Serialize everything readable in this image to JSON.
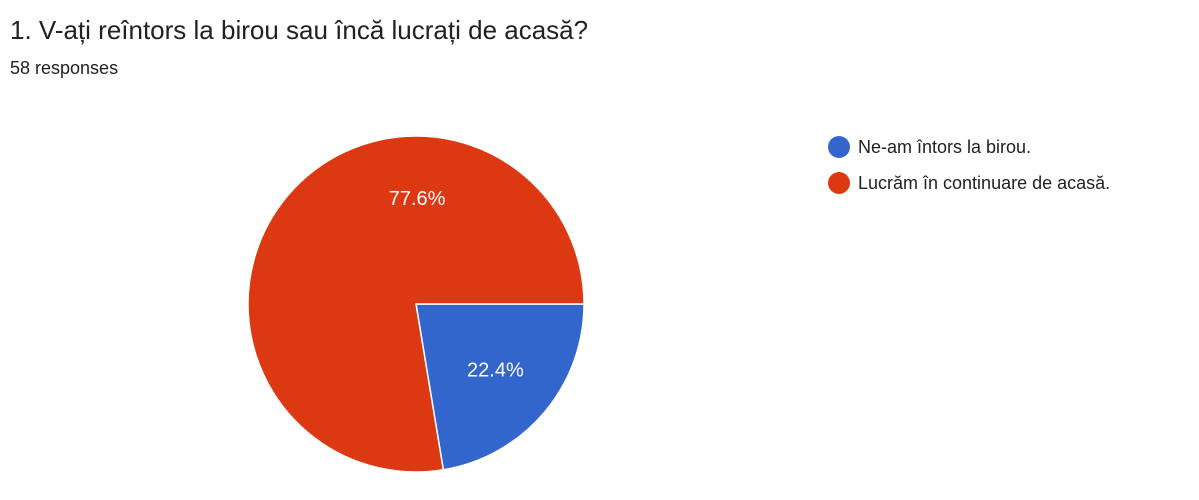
{
  "question": {
    "title": "1. V-ați reîntors la birou sau încă lucrați de acasă?",
    "responses": "58 responses"
  },
  "colors": {
    "series_1": "#3366cc",
    "series_2": "#dc3912"
  },
  "chart_data": {
    "type": "pie",
    "title": "1. V-ați reîntors la birou sau încă lucrați de acasă?",
    "categories": [
      "Ne-am întors la birou.",
      "Lucrăm în continuare de acasă."
    ],
    "values": [
      22.4,
      77.6
    ],
    "value_labels": [
      "22.4%",
      "77.6%"
    ],
    "colors": [
      "#3366cc",
      "#dc3912"
    ],
    "legend_position": "right"
  }
}
